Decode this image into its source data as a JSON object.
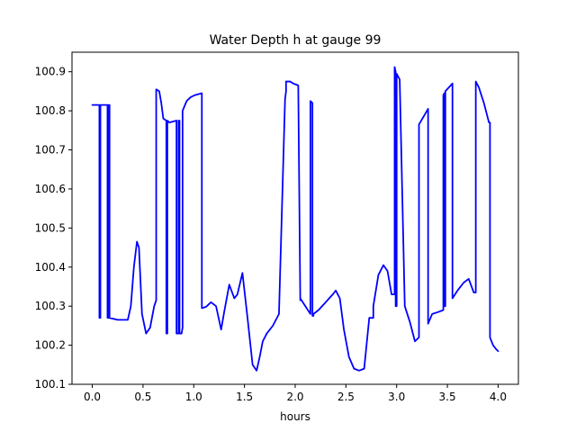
{
  "chart_data": {
    "type": "line",
    "title": "Water Depth h at gauge 99",
    "xlabel": "hours",
    "ylabel": "",
    "xlim": [
      -0.2,
      4.2
    ],
    "ylim": [
      100.1,
      100.95
    ],
    "xticks": [
      0.0,
      0.5,
      1.0,
      1.5,
      2.0,
      2.5,
      3.0,
      3.5,
      4.0
    ],
    "xtick_labels": [
      "0.0",
      "0.5",
      "1.0",
      "1.5",
      "2.0",
      "2.5",
      "3.0",
      "3.5",
      "4.0"
    ],
    "yticks": [
      100.1,
      100.2,
      100.3,
      100.4,
      100.5,
      100.6,
      100.7,
      100.8,
      100.9
    ],
    "ytick_labels": [
      "100.1",
      "100.2",
      "100.3",
      "100.4",
      "100.5",
      "100.6",
      "100.7",
      "100.8",
      "100.9"
    ],
    "grid": false,
    "series": [
      {
        "color": "#0000ff",
        "x": [
          0.0,
          0.07,
          0.07,
          0.08,
          0.08,
          0.15,
          0.15,
          0.16,
          0.16,
          0.17,
          0.17,
          0.25,
          0.35,
          0.38,
          0.41,
          0.44,
          0.46,
          0.49,
          0.53,
          0.57,
          0.61,
          0.63,
          0.63,
          0.66,
          0.68,
          0.7,
          0.73,
          0.73,
          0.74,
          0.74,
          0.76,
          0.83,
          0.83,
          0.85,
          0.85,
          0.86,
          0.86,
          0.88,
          0.89,
          0.89,
          0.93,
          0.97,
          1.01,
          1.08,
          1.08,
          1.12,
          1.17,
          1.22,
          1.27,
          1.3,
          1.35,
          1.4,
          1.43,
          1.48,
          1.53,
          1.58,
          1.62,
          1.65,
          1.68,
          1.72,
          1.78,
          1.84,
          1.9,
          1.91,
          1.91,
          1.95,
          1.98,
          2.03,
          2.05,
          2.05,
          2.15,
          2.15,
          2.17,
          2.17,
          2.18,
          2.18,
          2.23,
          2.3,
          2.37,
          2.4,
          2.44,
          2.48,
          2.53,
          2.58,
          2.63,
          2.68,
          2.73,
          2.77,
          2.77,
          2.82,
          2.87,
          2.91,
          2.95,
          2.98,
          2.98,
          2.99,
          2.99,
          3.0,
          3.0,
          3.03,
          3.08,
          3.13,
          3.18,
          3.22,
          3.22,
          3.31,
          3.31,
          3.35,
          3.41,
          3.46,
          3.46,
          3.47,
          3.47,
          3.48,
          3.48,
          3.55,
          3.55,
          3.6,
          3.66,
          3.71,
          3.76,
          3.78,
          3.78,
          3.81,
          3.86,
          3.91,
          3.92,
          3.92,
          3.95,
          3.98,
          4.0
        ],
        "y": [
          100.815,
          100.815,
          100.27,
          100.27,
          100.815,
          100.815,
          100.27,
          100.27,
          100.815,
          100.815,
          100.27,
          100.265,
          100.265,
          100.3,
          100.4,
          100.465,
          100.45,
          100.28,
          100.23,
          100.245,
          100.3,
          100.315,
          100.855,
          100.85,
          100.82,
          100.78,
          100.775,
          100.23,
          100.23,
          100.775,
          100.77,
          100.775,
          100.23,
          100.23,
          100.775,
          100.775,
          100.23,
          100.23,
          100.245,
          100.8,
          100.825,
          100.835,
          100.84,
          100.845,
          100.295,
          100.298,
          100.31,
          100.3,
          100.24,
          100.285,
          100.355,
          100.32,
          100.33,
          100.385,
          100.27,
          100.15,
          100.135,
          100.17,
          100.21,
          100.23,
          100.25,
          100.28,
          100.83,
          100.85,
          100.875,
          100.875,
          100.87,
          100.865,
          100.315,
          100.32,
          100.28,
          100.825,
          100.82,
          100.275,
          100.275,
          100.28,
          100.29,
          100.31,
          100.33,
          100.34,
          100.32,
          100.24,
          100.17,
          100.14,
          100.135,
          100.14,
          100.27,
          100.27,
          100.3,
          100.38,
          100.405,
          100.39,
          100.33,
          100.33,
          100.912,
          100.9,
          100.3,
          100.3,
          100.895,
          100.88,
          100.3,
          100.26,
          100.21,
          100.22,
          100.765,
          100.805,
          100.255,
          100.28,
          100.285,
          100.29,
          100.84,
          100.845,
          100.3,
          100.3,
          100.85,
          100.87,
          100.32,
          100.34,
          100.36,
          100.37,
          100.335,
          100.335,
          100.875,
          100.86,
          100.82,
          100.77,
          100.77,
          100.22,
          100.2,
          100.19,
          100.185
        ]
      }
    ]
  }
}
